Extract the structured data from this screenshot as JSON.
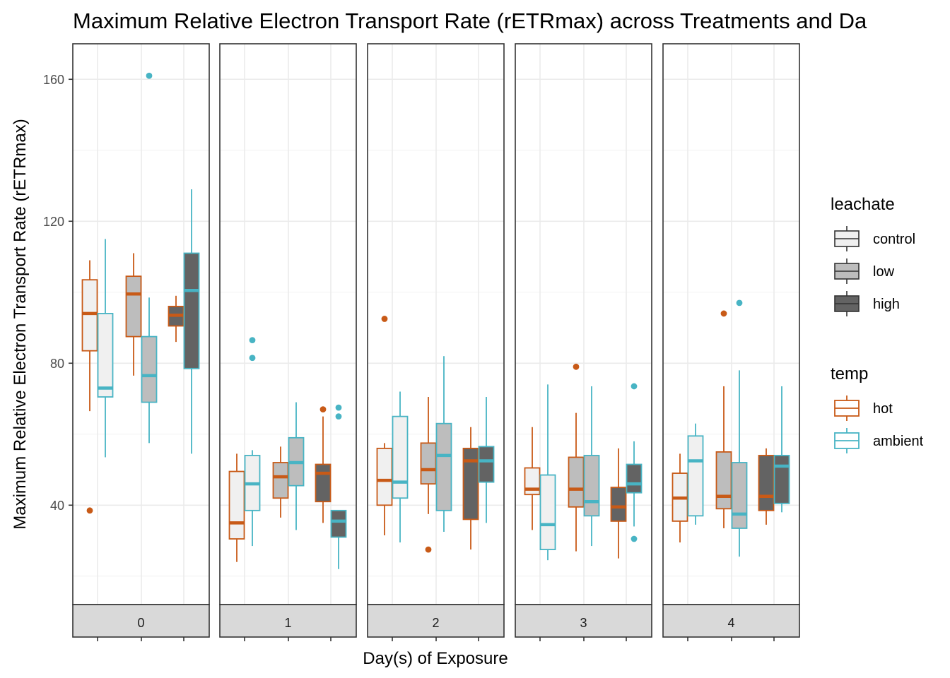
{
  "chart_data": {
    "type": "boxplot",
    "title": "Maximum Relative Electron Transport Rate (rETRmax) across Treatments and Da",
    "xlabel": "Day(s) of Exposure",
    "ylabel": "Maximum Relative Electron Transport Rate (rETRmax)",
    "ylim": [
      12,
      170
    ],
    "yticks": [
      40,
      80,
      120,
      160
    ],
    "facet_by": "Day(s) of Exposure",
    "facets": [
      "0",
      "1",
      "2",
      "3",
      "4"
    ],
    "categories": [
      "control",
      "low",
      "high"
    ],
    "legend": {
      "placement": "right",
      "fill": {
        "title": "leachate",
        "items": [
          {
            "label": "control",
            "color": "#f0f0f0"
          },
          {
            "label": "low",
            "color": "#bdbdbd"
          },
          {
            "label": "high",
            "color": "#636363"
          }
        ]
      },
      "colour": {
        "title": "temp",
        "items": [
          {
            "label": "hot",
            "color": "#c85a17"
          },
          {
            "label": "ambient",
            "color": "#48b4c4"
          }
        ]
      }
    },
    "grid": true,
    "series": [
      {
        "facet": "0",
        "leachate": "control",
        "temp": "hot",
        "min": 66.5,
        "q1": 83.5,
        "median": 94,
        "q3": 103.5,
        "max": 109,
        "outliers": [
          38.5
        ]
      },
      {
        "facet": "0",
        "leachate": "control",
        "temp": "ambient",
        "min": 53.5,
        "q1": 70.5,
        "median": 73,
        "q3": 94,
        "max": 115,
        "outliers": []
      },
      {
        "facet": "0",
        "leachate": "low",
        "temp": "hot",
        "min": 76.5,
        "q1": 87.5,
        "median": 99.5,
        "q3": 104.5,
        "max": 111,
        "outliers": []
      },
      {
        "facet": "0",
        "leachate": "low",
        "temp": "ambient",
        "min": 57.5,
        "q1": 69,
        "median": 76.5,
        "q3": 87.5,
        "max": 98.5,
        "outliers": [
          161
        ]
      },
      {
        "facet": "0",
        "leachate": "high",
        "temp": "hot",
        "min": 86,
        "q1": 90.5,
        "median": 93.5,
        "q3": 96,
        "max": 99,
        "outliers": []
      },
      {
        "facet": "0",
        "leachate": "high",
        "temp": "ambient",
        "min": 54.5,
        "q1": 78.5,
        "median": 100.5,
        "q3": 111,
        "max": 129,
        "outliers": []
      },
      {
        "facet": "1",
        "leachate": "control",
        "temp": "hot",
        "min": 24,
        "q1": 30.5,
        "median": 35,
        "q3": 49.5,
        "max": 54.5,
        "outliers": []
      },
      {
        "facet": "1",
        "leachate": "control",
        "temp": "ambient",
        "min": 28.5,
        "q1": 38.5,
        "median": 46,
        "q3": 54,
        "max": 55.5,
        "outliers": [
          81.5,
          86.5
        ]
      },
      {
        "facet": "1",
        "leachate": "low",
        "temp": "hot",
        "min": 36.5,
        "q1": 42,
        "median": 48,
        "q3": 52,
        "max": 56.5,
        "outliers": []
      },
      {
        "facet": "1",
        "leachate": "low",
        "temp": "ambient",
        "min": 33,
        "q1": 45.5,
        "median": 52,
        "q3": 59,
        "max": 69,
        "outliers": []
      },
      {
        "facet": "1",
        "leachate": "high",
        "temp": "hot",
        "min": 35,
        "q1": 41,
        "median": 49,
        "q3": 51.5,
        "max": 65,
        "outliers": [
          67
        ]
      },
      {
        "facet": "1",
        "leachate": "high",
        "temp": "ambient",
        "min": 22,
        "q1": 31,
        "median": 35.5,
        "q3": 38.5,
        "max": 38.5,
        "outliers": [
          65,
          67.5
        ]
      },
      {
        "facet": "2",
        "leachate": "control",
        "temp": "hot",
        "min": 31.5,
        "q1": 40,
        "median": 47,
        "q3": 56,
        "max": 57.5,
        "outliers": [
          92.5
        ]
      },
      {
        "facet": "2",
        "leachate": "control",
        "temp": "ambient",
        "min": 29.5,
        "q1": 42,
        "median": 46.5,
        "q3": 65,
        "max": 72,
        "outliers": []
      },
      {
        "facet": "2",
        "leachate": "low",
        "temp": "hot",
        "min": 37.5,
        "q1": 46,
        "median": 50,
        "q3": 57.5,
        "max": 70.5,
        "outliers": [
          27.5
        ]
      },
      {
        "facet": "2",
        "leachate": "low",
        "temp": "ambient",
        "min": 32.5,
        "q1": 38.5,
        "median": 54,
        "q3": 63,
        "max": 82,
        "outliers": []
      },
      {
        "facet": "2",
        "leachate": "high",
        "temp": "hot",
        "min": 27.5,
        "q1": 36,
        "median": 52.5,
        "q3": 56,
        "max": 62,
        "outliers": []
      },
      {
        "facet": "2",
        "leachate": "high",
        "temp": "ambient",
        "min": 35,
        "q1": 46.5,
        "median": 52.5,
        "q3": 56.5,
        "max": 70.5,
        "outliers": []
      },
      {
        "facet": "3",
        "leachate": "control",
        "temp": "hot",
        "min": 33,
        "q1": 43,
        "median": 44.5,
        "q3": 50.5,
        "max": 62,
        "outliers": []
      },
      {
        "facet": "3",
        "leachate": "control",
        "temp": "ambient",
        "min": 24.5,
        "q1": 27.5,
        "median": 34.5,
        "q3": 48.5,
        "max": 74,
        "outliers": []
      },
      {
        "facet": "3",
        "leachate": "low",
        "temp": "hot",
        "min": 27,
        "q1": 39.5,
        "median": 44.5,
        "q3": 53.5,
        "max": 66,
        "outliers": [
          79
        ]
      },
      {
        "facet": "3",
        "leachate": "low",
        "temp": "ambient",
        "min": 28.5,
        "q1": 37,
        "median": 41,
        "q3": 54,
        "max": 73.5,
        "outliers": []
      },
      {
        "facet": "3",
        "leachate": "high",
        "temp": "hot",
        "min": 25,
        "q1": 35.5,
        "median": 39.5,
        "q3": 45,
        "max": 56,
        "outliers": []
      },
      {
        "facet": "3",
        "leachate": "high",
        "temp": "ambient",
        "min": 34,
        "q1": 43.5,
        "median": 46,
        "q3": 51.5,
        "max": 58,
        "outliers": [
          73.5,
          30.5
        ]
      },
      {
        "facet": "4",
        "leachate": "control",
        "temp": "hot",
        "min": 29.5,
        "q1": 35.5,
        "median": 42,
        "q3": 49,
        "max": 54.5,
        "outliers": []
      },
      {
        "facet": "4",
        "leachate": "control",
        "temp": "ambient",
        "min": 34.5,
        "q1": 37,
        "median": 52.5,
        "q3": 59.5,
        "max": 63,
        "outliers": []
      },
      {
        "facet": "4",
        "leachate": "low",
        "temp": "hot",
        "min": 33.5,
        "q1": 39,
        "median": 42.5,
        "q3": 55,
        "max": 73.5,
        "outliers": [
          94
        ]
      },
      {
        "facet": "4",
        "leachate": "low",
        "temp": "ambient",
        "min": 25.5,
        "q1": 33.5,
        "median": 37.5,
        "q3": 52,
        "max": 78,
        "outliers": [
          97
        ]
      },
      {
        "facet": "4",
        "leachate": "high",
        "temp": "hot",
        "min": 34.5,
        "q1": 38.5,
        "median": 42.5,
        "q3": 54,
        "max": 56,
        "outliers": []
      },
      {
        "facet": "4",
        "leachate": "high",
        "temp": "ambient",
        "min": 38,
        "q1": 40.5,
        "median": 51,
        "q3": 54,
        "max": 73.5,
        "outliers": []
      }
    ]
  }
}
